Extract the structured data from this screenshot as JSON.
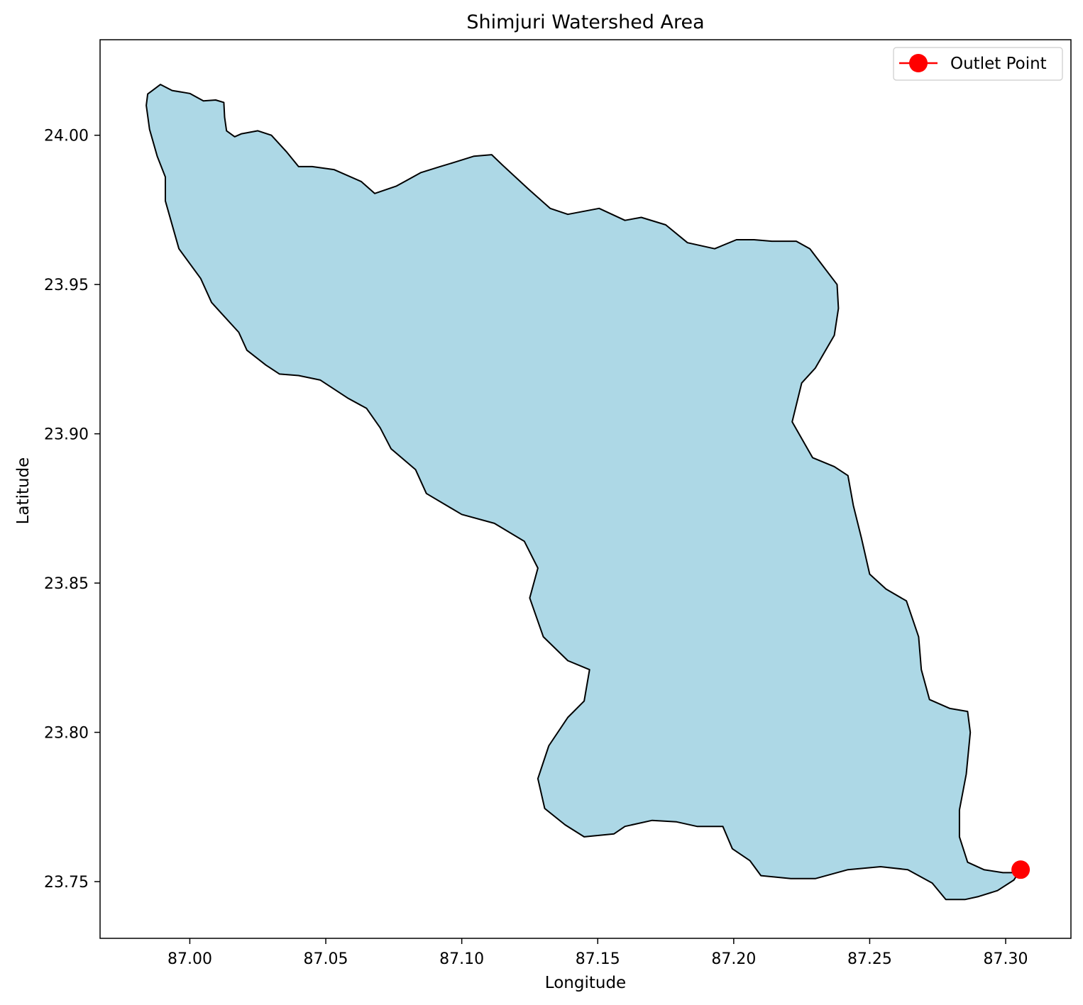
{
  "chart_data": {
    "type": "map",
    "title": "Shimjuri Watershed Area",
    "xlabel": "Longitude",
    "ylabel": "Latitude",
    "xlim": [
      86.967,
      87.324
    ],
    "ylim": [
      23.731,
      24.032
    ],
    "xticks": [
      87.0,
      87.05,
      87.1,
      87.15,
      87.2,
      87.25,
      87.3
    ],
    "xtick_labels": [
      "87.00",
      "87.05",
      "87.10",
      "87.15",
      "87.20",
      "87.25",
      "87.30"
    ],
    "yticks": [
      23.75,
      23.8,
      23.85,
      23.9,
      23.95,
      24.0
    ],
    "ytick_labels": [
      "23.75",
      "23.80",
      "23.85",
      "23.90",
      "23.95",
      "24.00"
    ],
    "grid": false,
    "legend_position": "upper right",
    "legend": [
      {
        "label": "Outlet Point",
        "marker": "circle",
        "color": "#ff0000"
      }
    ],
    "watershed": {
      "fill_color": "#add8e6",
      "edge_color": "#000000",
      "boundary": [
        [
          86.9845,
          24.0138
        ],
        [
          86.9892,
          24.017
        ],
        [
          86.9935,
          24.015
        ],
        [
          87.0,
          24.014
        ],
        [
          87.005,
          24.0115
        ],
        [
          87.0095,
          24.0118
        ],
        [
          87.0125,
          24.011
        ],
        [
          87.0128,
          24.006
        ],
        [
          87.0135,
          24.0015
        ],
        [
          87.0165,
          23.9995
        ],
        [
          87.019,
          24.0005
        ],
        [
          87.025,
          24.0015
        ],
        [
          87.03,
          24.0
        ],
        [
          87.0355,
          23.9945
        ],
        [
          87.04,
          23.9895
        ],
        [
          87.045,
          23.9895
        ],
        [
          87.053,
          23.9885
        ],
        [
          87.063,
          23.9845
        ],
        [
          87.068,
          23.9805
        ],
        [
          87.076,
          23.983
        ],
        [
          87.085,
          23.9875
        ],
        [
          87.092,
          23.9895
        ],
        [
          87.0975,
          23.991
        ],
        [
          87.1045,
          23.993
        ],
        [
          87.111,
          23.9935
        ],
        [
          87.115,
          23.99
        ],
        [
          87.1245,
          23.982
        ],
        [
          87.1325,
          23.9755
        ],
        [
          87.139,
          23.9735
        ],
        [
          87.1505,
          23.9755
        ],
        [
          87.16,
          23.9715
        ],
        [
          87.166,
          23.9725
        ],
        [
          87.175,
          23.97
        ],
        [
          87.183,
          23.964
        ],
        [
          87.193,
          23.962
        ],
        [
          87.201,
          23.965
        ],
        [
          87.2075,
          23.965
        ],
        [
          87.214,
          23.9645
        ],
        [
          87.223,
          23.9645
        ],
        [
          87.228,
          23.962
        ],
        [
          87.238,
          23.95
        ],
        [
          87.2385,
          23.942
        ],
        [
          87.237,
          23.933
        ],
        [
          87.23,
          23.922
        ],
        [
          87.225,
          23.917
        ],
        [
          87.2215,
          23.904
        ],
        [
          87.229,
          23.892
        ],
        [
          87.237,
          23.889
        ],
        [
          87.242,
          23.886
        ],
        [
          87.244,
          23.876
        ],
        [
          87.247,
          23.865
        ],
        [
          87.25,
          23.853
        ],
        [
          87.256,
          23.848
        ],
        [
          87.2635,
          23.844
        ],
        [
          87.268,
          23.832
        ],
        [
          87.269,
          23.821
        ],
        [
          87.272,
          23.811
        ],
        [
          87.2795,
          23.808
        ],
        [
          87.286,
          23.807
        ],
        [
          87.287,
          23.8
        ],
        [
          87.2855,
          23.786
        ],
        [
          87.283,
          23.774
        ],
        [
          87.283,
          23.765
        ],
        [
          87.286,
          23.7565
        ],
        [
          87.292,
          23.754
        ],
        [
          87.299,
          23.753
        ],
        [
          87.304,
          23.753
        ],
        [
          87.3055,
          23.754
        ],
        [
          87.303,
          23.7505
        ],
        [
          87.297,
          23.747
        ],
        [
          87.29,
          23.745
        ],
        [
          87.285,
          23.744
        ],
        [
          87.278,
          23.744
        ],
        [
          87.273,
          23.7495
        ],
        [
          87.264,
          23.754
        ],
        [
          87.254,
          23.755
        ],
        [
          87.242,
          23.754
        ],
        [
          87.23,
          23.751
        ],
        [
          87.221,
          23.751
        ],
        [
          87.21,
          23.752
        ],
        [
          87.206,
          23.757
        ],
        [
          87.1995,
          23.761
        ],
        [
          87.196,
          23.7685
        ],
        [
          87.1865,
          23.7685
        ],
        [
          87.179,
          23.77
        ],
        [
          87.17,
          23.7705
        ],
        [
          87.16,
          23.7685
        ],
        [
          87.156,
          23.766
        ],
        [
          87.145,
          23.765
        ],
        [
          87.138,
          23.769
        ],
        [
          87.1305,
          23.7745
        ],
        [
          87.128,
          23.7845
        ],
        [
          87.132,
          23.7955
        ],
        [
          87.139,
          23.805
        ],
        [
          87.145,
          23.8105
        ],
        [
          87.147,
          23.821
        ],
        [
          87.139,
          23.824
        ],
        [
          87.13,
          23.832
        ],
        [
          87.125,
          23.845
        ],
        [
          87.128,
          23.855
        ],
        [
          87.123,
          23.864
        ],
        [
          87.112,
          23.87
        ],
        [
          87.1,
          23.873
        ],
        [
          87.087,
          23.88
        ],
        [
          87.083,
          23.888
        ],
        [
          87.074,
          23.895
        ],
        [
          87.07,
          23.902
        ],
        [
          87.065,
          23.9085
        ],
        [
          87.058,
          23.912
        ],
        [
          87.048,
          23.918
        ],
        [
          87.04,
          23.9195
        ],
        [
          87.033,
          23.92
        ],
        [
          87.028,
          23.923
        ],
        [
          87.021,
          23.928
        ],
        [
          87.018,
          23.934
        ],
        [
          87.012,
          23.94
        ],
        [
          87.008,
          23.944
        ],
        [
          87.004,
          23.952
        ],
        [
          86.996,
          23.962
        ],
        [
          86.991,
          23.978
        ],
        [
          86.991,
          23.986
        ],
        [
          86.988,
          23.993
        ],
        [
          86.9852,
          24.002
        ],
        [
          86.984,
          24.01
        ]
      ]
    },
    "outlet_point": {
      "lon": 87.3055,
      "lat": 23.754,
      "color": "#ff0000"
    }
  }
}
